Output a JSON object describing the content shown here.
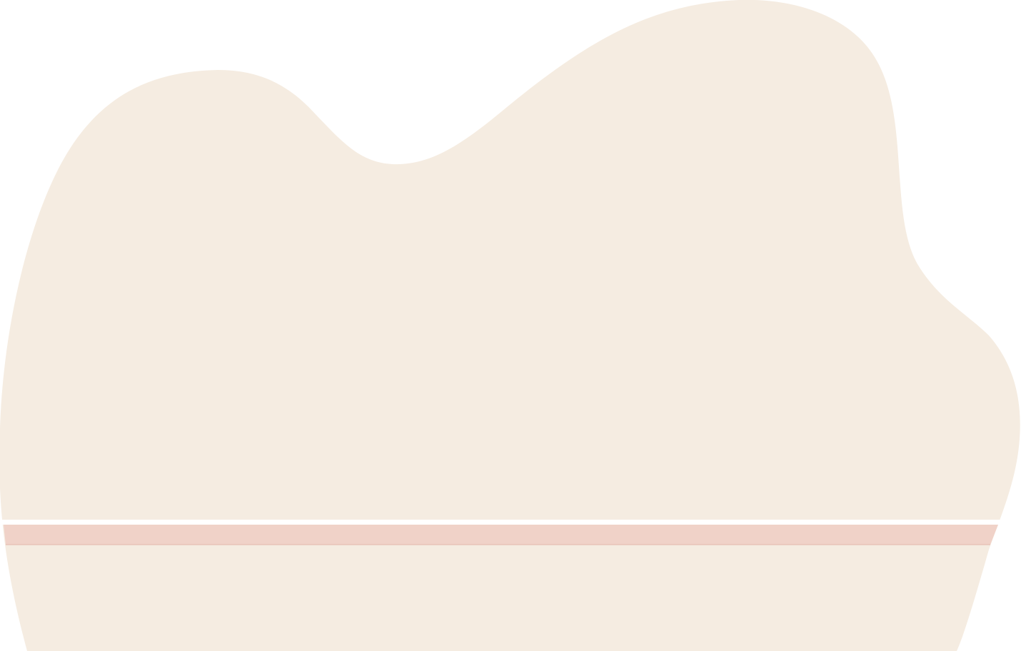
{
  "colors": {
    "background": "#ffffff",
    "blob": "#f5ece1",
    "band": "#f0d2c8",
    "band_edge": "#e2b8ad"
  }
}
